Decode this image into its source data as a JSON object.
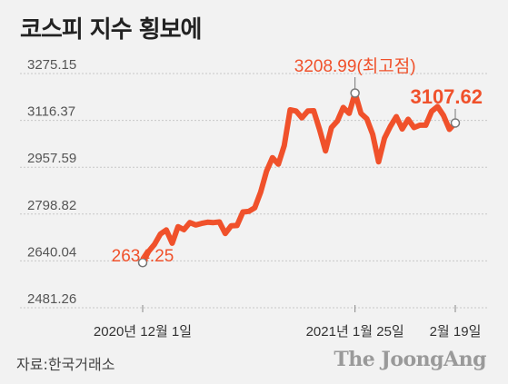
{
  "title": "코스피 지수 횡보에",
  "source": "자료:한국거래소",
  "brand": "The JoongAng",
  "colors": {
    "line": "#f0512b",
    "text": "#222222",
    "axis_text": "#555555",
    "grid": "#c8c8c8",
    "marker_fill": "#ffffff"
  },
  "chart_data": {
    "type": "line",
    "title": "코스피 지수 횡보에",
    "xlabel": "",
    "ylabel": "",
    "y_ticks": [
      2481.26,
      2640.04,
      2798.82,
      2957.59,
      3116.37,
      3275.15
    ],
    "y_tick_labels": [
      "2481.26",
      "2640.04",
      "2798.82",
      "2957.59",
      "3116.37",
      "3275.15"
    ],
    "ylim": [
      2481.26,
      3275.15
    ],
    "x_ticks": [
      {
        "x": "2020-12-01",
        "label": "2020년 12월 1일"
      },
      {
        "x": "2021-01-25",
        "label": "2021년 1월 25일"
      },
      {
        "x": "2021-02-19",
        "label": "2월 19일"
      }
    ],
    "grid": true,
    "series": [
      {
        "x": [
          "2020-12-01",
          "2020-12-02",
          "2020-12-03",
          "2020-12-04",
          "2020-12-07",
          "2020-12-08",
          "2020-12-09",
          "2020-12-10",
          "2020-12-11",
          "2020-12-14",
          "2020-12-15",
          "2020-12-16",
          "2020-12-17",
          "2020-12-18",
          "2020-12-21",
          "2020-12-22",
          "2020-12-23",
          "2020-12-24",
          "2020-12-28",
          "2020-12-29",
          "2020-12-30",
          "2021-01-04",
          "2021-01-05",
          "2021-01-06",
          "2021-01-07",
          "2021-01-08",
          "2021-01-11",
          "2021-01-12",
          "2021-01-13",
          "2021-01-14",
          "2021-01-15",
          "2021-01-18",
          "2021-01-19",
          "2021-01-20",
          "2021-01-21",
          "2021-01-22",
          "2021-01-25",
          "2021-01-26",
          "2021-01-27",
          "2021-01-28",
          "2021-01-29",
          "2021-02-01",
          "2021-02-02",
          "2021-02-03",
          "2021-02-04",
          "2021-02-05",
          "2021-02-08",
          "2021-02-09",
          "2021-02-10",
          "2021-02-15",
          "2021-02-16",
          "2021-02-17",
          "2021-02-18",
          "2021-02-19"
        ],
        "values": [
          2634.25,
          2672,
          2696,
          2731,
          2745,
          2700,
          2756,
          2746,
          2770,
          2762,
          2767,
          2771,
          2770,
          2772,
          2733,
          2759,
          2760,
          2806,
          2808,
          2820,
          2873,
          2944,
          2990,
          2968,
          3031,
          3152,
          3148,
          3125,
          3148,
          3149,
          3085,
          3013,
          3092,
          3114,
          3160,
          3140,
          3208.99,
          3140,
          3122,
          3069,
          2976,
          3056,
          3096,
          3129,
          3087,
          3120,
          3092,
          3100,
          3100,
          3147,
          3163,
          3133,
          3086,
          3107.62
        ]
      }
    ],
    "annotations": [
      {
        "x": "2020-12-01",
        "value": 2634.25,
        "label": "2634.25"
      },
      {
        "x": "2021-01-25",
        "value": 3208.99,
        "label": "3208.99(최고점)"
      },
      {
        "x": "2021-02-19",
        "value": 3107.62,
        "label": "3107.62"
      }
    ]
  }
}
